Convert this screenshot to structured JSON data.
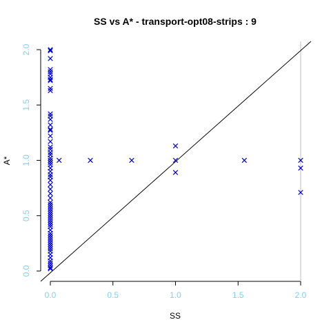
{
  "chart_data": {
    "type": "scatter",
    "title": "SS vs A* - transport-opt08-strips : 9",
    "xlabel": "SS",
    "ylabel": "A*",
    "xlim": [
      0,
      2
    ],
    "ylim": [
      0,
      2
    ],
    "xticks": [
      "0.0",
      "0.5",
      "1.0",
      "1.5",
      "2.0"
    ],
    "yticks": [
      "0.0",
      "0.5",
      "1.0",
      "1.5",
      "2.0"
    ],
    "reference_line": "y = x",
    "colors": {
      "points": "#0000cd",
      "ticks": "#87ceeb",
      "axes": "#000000",
      "edge": "#bebebe"
    },
    "series": [
      {
        "marker": "x",
        "points": [
          [
            0,
            2.0
          ],
          [
            0,
            1.99
          ],
          [
            0,
            1.92
          ],
          [
            0,
            1.82
          ],
          [
            0,
            1.8
          ],
          [
            0,
            1.78
          ],
          [
            0,
            1.75
          ],
          [
            0,
            1.73
          ],
          [
            0,
            1.72
          ],
          [
            0,
            1.65
          ],
          [
            0,
            1.63
          ],
          [
            0,
            1.42
          ],
          [
            0,
            1.4
          ],
          [
            0,
            1.37
          ],
          [
            0,
            1.32
          ],
          [
            0,
            1.28
          ],
          [
            0,
            1.27
          ],
          [
            0,
            1.22
          ],
          [
            0,
            1.17
          ],
          [
            0,
            1.12
          ],
          [
            0,
            1.1
          ],
          [
            0,
            1.07
          ],
          [
            0,
            1.05
          ],
          [
            0,
            1.02
          ],
          [
            0,
            1.0
          ],
          [
            0,
            0.98
          ],
          [
            0,
            0.96
          ],
          [
            0,
            0.93
          ],
          [
            0,
            0.9
          ],
          [
            0,
            0.87
          ],
          [
            0,
            0.85
          ],
          [
            0,
            0.82
          ],
          [
            0,
            0.78
          ],
          [
            0,
            0.74
          ],
          [
            0,
            0.7
          ],
          [
            0,
            0.66
          ],
          [
            0,
            0.62
          ],
          [
            0,
            0.6
          ],
          [
            0,
            0.58
          ],
          [
            0,
            0.56
          ],
          [
            0,
            0.54
          ],
          [
            0,
            0.52
          ],
          [
            0,
            0.5
          ],
          [
            0,
            0.48
          ],
          [
            0,
            0.46
          ],
          [
            0,
            0.44
          ],
          [
            0,
            0.42
          ],
          [
            0,
            0.4
          ],
          [
            0,
            0.37
          ],
          [
            0,
            0.34
          ],
          [
            0,
            0.32
          ],
          [
            0,
            0.3
          ],
          [
            0,
            0.28
          ],
          [
            0,
            0.26
          ],
          [
            0,
            0.24
          ],
          [
            0,
            0.22
          ],
          [
            0,
            0.2
          ],
          [
            0,
            0.18
          ],
          [
            0,
            0.15
          ],
          [
            0,
            0.12
          ],
          [
            0,
            0.09
          ],
          [
            0,
            0.07
          ],
          [
            0,
            0.05
          ],
          [
            0,
            0.03
          ],
          [
            0,
            0.02
          ],
          [
            0.07,
            1.0
          ],
          [
            0.32,
            1.0
          ],
          [
            0.65,
            1.0
          ],
          [
            1.0,
            1.13
          ],
          [
            1.0,
            1.0
          ],
          [
            1.0,
            0.89
          ],
          [
            1.55,
            1.0
          ],
          [
            2.0,
            1.0
          ],
          [
            2.0,
            0.93
          ],
          [
            2.0,
            0.71
          ]
        ]
      }
    ]
  }
}
